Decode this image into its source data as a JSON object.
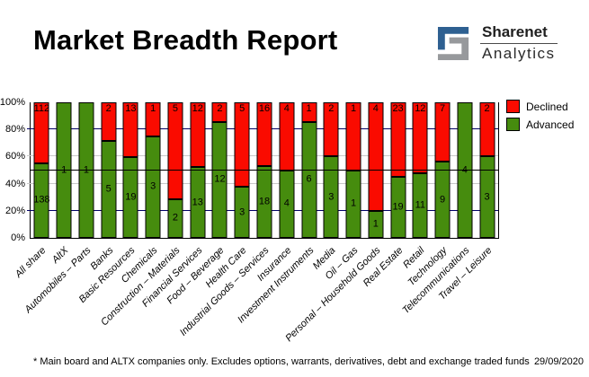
{
  "header": {
    "title": "Market Breadth Report",
    "logo": {
      "line1": "Sharenet",
      "line2": "Analytics",
      "blue": "#2e6091",
      "gray": "#97999c"
    }
  },
  "legend": {
    "items": [
      {
        "label": "Declined",
        "color": "#fa0b00"
      },
      {
        "label": "Advanced",
        "color": "#468c0e"
      }
    ]
  },
  "chart_data": {
    "type": "bar",
    "stacked": true,
    "title": "Market Breadth Report",
    "units": "each bar stacked to 100% of companies in sector; labels show company counts",
    "ylim": [
      0,
      100
    ],
    "y_ticks": [
      "0%",
      "20%",
      "40%",
      "60%",
      "80%",
      "100%"
    ],
    "reference_line_pct": 50,
    "legend_position": "top-right-outside",
    "gridlines": [
      {
        "pct": 20,
        "color": "#000066"
      },
      {
        "pct": 40,
        "color": "#c8c8c8"
      },
      {
        "pct": 60,
        "color": "#c8c8c8"
      },
      {
        "pct": 80,
        "color": "#000066"
      }
    ],
    "categories": [
      "All share",
      "AltX",
      "Automobiles – Parts",
      "Banks",
      "Basic Resources",
      "Chemicals",
      "Construction – Materials",
      "Financial Services",
      "Food – Beverage",
      "Health Care",
      "Industrial Goods – Services",
      "Insurance",
      "Investment Instruments",
      "Media",
      "Oil – Gas",
      "Personal – Household Goods",
      "Real Estate",
      "Retail",
      "Technology",
      "Telecommunications",
      "Travel – Leisure"
    ],
    "series": [
      {
        "name": "Declined",
        "color": "#fa0b00",
        "values": [
          112,
          0,
          0,
          2,
          13,
          1,
          5,
          12,
          2,
          5,
          16,
          4,
          1,
          2,
          1,
          4,
          23,
          12,
          7,
          0,
          2
        ]
      },
      {
        "name": "Advanced",
        "color": "#468c0e",
        "values": [
          138,
          1,
          1,
          5,
          19,
          3,
          2,
          13,
          12,
          3,
          18,
          4,
          6,
          3,
          1,
          1,
          19,
          11,
          9,
          4,
          3
        ]
      }
    ]
  },
  "footer": {
    "note": "* Main board and ALTX companies only. Excludes options, warrants, derivatives, debt and exchange traded funds",
    "date": "29/09/2020"
  }
}
